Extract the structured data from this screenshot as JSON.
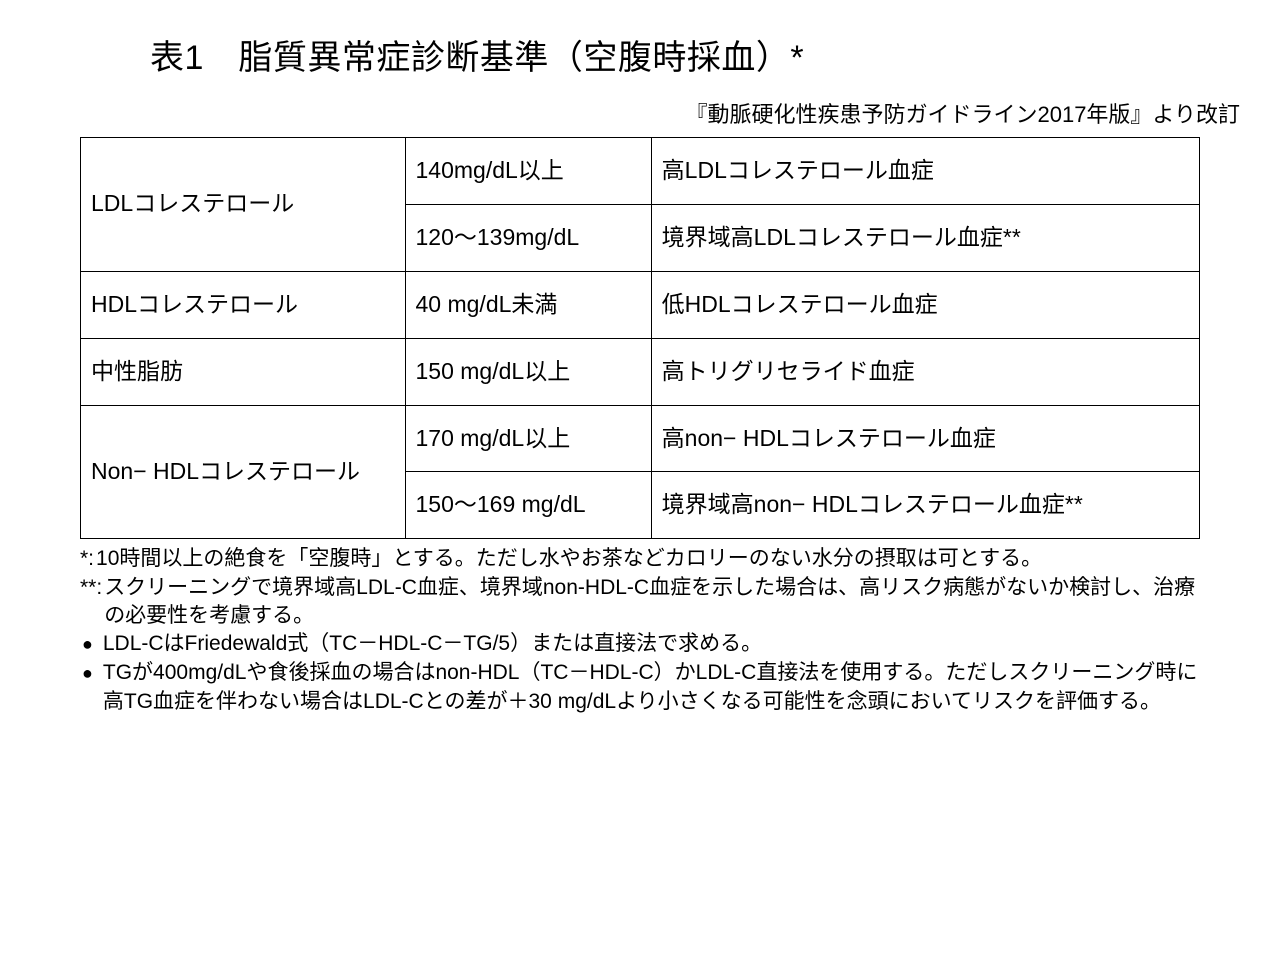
{
  "title": "表1　脂質異常症診断基準（空腹時採血）*",
  "subtitle": "『動脈硬化性疾患予防ガイドライン2017年版』より改訂",
  "table": {
    "type": "table",
    "border_color": "#000000",
    "background_color": "#ffffff",
    "text_color": "#000000",
    "font_size_pt": 17,
    "columns_width_pct": [
      29,
      22,
      49
    ],
    "rows": [
      {
        "param": "LDLコレステロール",
        "threshold": "140mg/dL以上",
        "diagnosis": "高LDLコレステロール血症",
        "rowspan_param": 2
      },
      {
        "param": null,
        "threshold": "120～139mg/dL",
        "diagnosis": "境界域高LDLコレステロール血症**"
      },
      {
        "param": "HDLコレステロール",
        "threshold": "40 mg/dL未満",
        "diagnosis": "低HDLコレステロール血症",
        "rowspan_param": 1
      },
      {
        "param": "中性脂肪",
        "threshold": "150 mg/dL以上",
        "diagnosis": "高トリグリセライド血症",
        "rowspan_param": 1
      },
      {
        "param": "Non− HDLコレステロール",
        "threshold": "170 mg/dL以上",
        "diagnosis": "高non− HDLコレステロール血症",
        "rowspan_param": 2
      },
      {
        "param": null,
        "threshold": "150～169 mg/dL",
        "diagnosis": "境界域高non− HDLコレステロール血症**"
      }
    ]
  },
  "footnotes": {
    "star1_marker": "*:",
    "star1_text": "10時間以上の絶食を「空腹時」とする。ただし水やお茶などカロリーのない水分の摂取は可とする。",
    "star2_marker": "**:",
    "star2_text": "スクリーニングで境界域高LDL-C血症、境界域non-HDL-C血症を示した場合は、高リスク病態がないか検討し、治療の必要性を考慮する。",
    "bullet1_text": "LDL-CはFriedewald式（TC－HDL-C－TG/5）または直接法で求める。",
    "bullet2_text": "TGが400mg/dLや食後採血の場合はnon-HDL（TC－HDL-C）かLDL-C直接法を使用する。ただしスクリーニング時に高TG血症を伴わない場合はLDL-Cとの差が＋30 mg/dLより小さくなる可能性を念頭においてリスクを評価する。",
    "bullet_glyph": "●"
  }
}
